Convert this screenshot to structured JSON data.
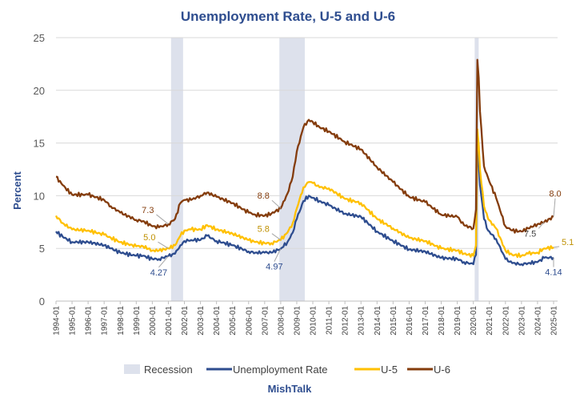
{
  "chart_data": {
    "type": "line",
    "title": "Unemployment Rate, U-5 and U-6",
    "ylabel": "Percent",
    "xlabel": "",
    "ylim": [
      0,
      25
    ],
    "yticks": [
      "0",
      "5",
      "10",
      "15",
      "20",
      "25"
    ],
    "x_tick_labels": [
      "1994-01",
      "1995-01",
      "1996-01",
      "1997-01",
      "1998-01",
      "1999-01",
      "2000-01",
      "2001-01",
      "2002-01",
      "2003-01",
      "2004-01",
      "2005-01",
      "2006-01",
      "2007-01",
      "2008-01",
      "2009-01",
      "2010-01",
      "2011-01",
      "2012-01",
      "2013-01",
      "2014-01",
      "2015-01",
      "2016-01",
      "2017-01",
      "2018-01",
      "2019-01",
      "2020-01",
      "2021-01",
      "2022-01",
      "2023-01",
      "2024-01",
      "2025-01"
    ],
    "grid": "horizontal",
    "legend_position": "bottom",
    "recessions": [
      {
        "start": "2001-03",
        "end": "2001-11"
      },
      {
        "start": "2007-12",
        "end": "2009-06"
      },
      {
        "start": "2020-02",
        "end": "2020-04"
      }
    ],
    "series": [
      {
        "name": "Unemployment Rate",
        "color": "#2e4d8f",
        "x": [
          "1994-01",
          "1994-06",
          "1995-01",
          "1996-01",
          "1997-01",
          "1997-06",
          "1998-01",
          "1999-01",
          "1999-06",
          "2000-01",
          "2000-06",
          "2001-01",
          "2001-06",
          "2001-10",
          "2002-01",
          "2002-06",
          "2003-01",
          "2003-06",
          "2004-01",
          "2005-01",
          "2006-01",
          "2006-06",
          "2007-01",
          "2007-06",
          "2008-01",
          "2008-06",
          "2008-10",
          "2009-01",
          "2009-06",
          "2009-10",
          "2010-01",
          "2010-06",
          "2011-01",
          "2012-01",
          "2013-01",
          "2014-01",
          "2015-01",
          "2016-01",
          "2017-01",
          "2018-01",
          "2019-01",
          "2019-06",
          "2020-01",
          "2020-03",
          "2020-04",
          "2020-05",
          "2020-06",
          "2020-09",
          "2020-12",
          "2021-06",
          "2022-01",
          "2022-06",
          "2023-01",
          "2023-06",
          "2024-01",
          "2024-06",
          "2025-01"
        ],
        "y": [
          6.6,
          6.1,
          5.6,
          5.6,
          5.3,
          5.0,
          4.6,
          4.3,
          4.3,
          4.0,
          4.0,
          4.27,
          4.5,
          5.3,
          5.7,
          5.8,
          5.8,
          6.2,
          5.7,
          5.3,
          4.7,
          4.6,
          4.6,
          4.6,
          4.97,
          5.6,
          6.5,
          7.8,
          9.5,
          10.0,
          9.8,
          9.5,
          9.1,
          8.3,
          8.0,
          6.6,
          5.7,
          4.9,
          4.7,
          4.1,
          4.0,
          3.7,
          3.5,
          4.4,
          14.7,
          13.2,
          11.0,
          7.8,
          6.7,
          5.9,
          4.0,
          3.6,
          3.5,
          3.6,
          3.7,
          4.1,
          4.14
        ]
      },
      {
        "name": "U-5",
        "color": "#ffc000",
        "x": [
          "1994-01",
          "1994-06",
          "1995-01",
          "1996-01",
          "1997-01",
          "1997-06",
          "1998-01",
          "1999-01",
          "1999-06",
          "2000-01",
          "2000-06",
          "2001-01",
          "2001-06",
          "2001-10",
          "2002-01",
          "2002-06",
          "2003-01",
          "2003-06",
          "2004-01",
          "2005-01",
          "2006-01",
          "2006-06",
          "2007-01",
          "2007-06",
          "2008-01",
          "2008-06",
          "2008-10",
          "2009-01",
          "2009-06",
          "2009-10",
          "2010-01",
          "2010-06",
          "2011-01",
          "2012-01",
          "2013-01",
          "2014-01",
          "2015-01",
          "2016-01",
          "2017-01",
          "2018-01",
          "2019-01",
          "2019-06",
          "2020-01",
          "2020-03",
          "2020-04",
          "2020-05",
          "2020-06",
          "2020-09",
          "2020-12",
          "2021-06",
          "2022-01",
          "2022-06",
          "2023-01",
          "2023-06",
          "2024-01",
          "2024-06",
          "2025-01"
        ],
        "y": [
          8.1,
          7.4,
          6.8,
          6.7,
          6.3,
          6.0,
          5.6,
          5.2,
          5.2,
          4.8,
          4.8,
          5.0,
          5.3,
          6.2,
          6.7,
          6.8,
          6.8,
          7.2,
          6.8,
          6.4,
          5.8,
          5.6,
          5.5,
          5.5,
          5.8,
          6.5,
          7.4,
          8.8,
          10.8,
          11.3,
          11.2,
          10.8,
          10.7,
          9.7,
          9.3,
          7.8,
          6.9,
          6.0,
          5.7,
          5.0,
          4.8,
          4.5,
          4.3,
          5.3,
          16.3,
          14.8,
          12.5,
          9.0,
          7.8,
          6.9,
          4.8,
          4.4,
          4.3,
          4.5,
          4.6,
          5.0,
          5.1
        ]
      },
      {
        "name": "U-6",
        "color": "#843c0c",
        "x": [
          "1994-01",
          "1994-06",
          "1995-01",
          "1996-01",
          "1997-01",
          "1997-06",
          "1998-01",
          "1999-01",
          "1999-06",
          "2000-01",
          "2000-06",
          "2001-01",
          "2001-06",
          "2001-10",
          "2002-01",
          "2002-06",
          "2003-01",
          "2003-06",
          "2004-01",
          "2005-01",
          "2006-01",
          "2006-06",
          "2007-01",
          "2007-06",
          "2008-01",
          "2008-06",
          "2008-10",
          "2009-01",
          "2009-06",
          "2009-10",
          "2010-01",
          "2010-06",
          "2011-01",
          "2012-01",
          "2013-01",
          "2014-01",
          "2015-01",
          "2016-01",
          "2017-01",
          "2018-01",
          "2019-01",
          "2019-06",
          "2020-01",
          "2020-03",
          "2020-04",
          "2020-05",
          "2020-06",
          "2020-09",
          "2020-12",
          "2021-06",
          "2022-01",
          "2022-06",
          "2023-01",
          "2023-06",
          "2024-01",
          "2024-06",
          "2025-01"
        ],
        "y": [
          11.8,
          11.0,
          10.1,
          10.1,
          9.6,
          9.0,
          8.4,
          7.7,
          7.6,
          7.1,
          7.0,
          7.3,
          7.8,
          9.3,
          9.6,
          9.6,
          10.0,
          10.3,
          9.9,
          9.3,
          8.4,
          8.2,
          8.1,
          8.3,
          8.8,
          10.2,
          11.8,
          14.2,
          16.5,
          17.2,
          17.0,
          16.5,
          16.1,
          15.1,
          14.4,
          12.7,
          11.3,
          9.9,
          9.4,
          8.2,
          8.0,
          7.2,
          6.9,
          8.7,
          22.9,
          21.2,
          18.0,
          12.8,
          11.7,
          9.8,
          7.1,
          6.7,
          6.6,
          6.9,
          7.3,
          7.5,
          8.0
        ]
      }
    ],
    "annotations": [
      {
        "text": "7.3",
        "series": "U-6",
        "x": "2001-01",
        "y": 7.3,
        "color": "#843c0c"
      },
      {
        "text": "5.0",
        "series": "U-5",
        "x": "2001-01",
        "y": 5.0,
        "color": "#bf9000"
      },
      {
        "text": "4.27",
        "series": "Unemployment Rate",
        "x": "2001-01",
        "y": 4.27,
        "color": "#2e4d8f"
      },
      {
        "text": "8.8",
        "series": "U-6",
        "x": "2008-01",
        "y": 8.8,
        "color": "#843c0c"
      },
      {
        "text": "5.8",
        "series": "U-5",
        "x": "2008-01",
        "y": 5.8,
        "color": "#bf9000"
      },
      {
        "text": "4.97",
        "series": "Unemployment Rate",
        "x": "2008-01",
        "y": 4.97,
        "color": "#2e4d8f"
      },
      {
        "text": "8.0",
        "series": "U-6",
        "x": "2025-01",
        "y": 8.0,
        "color": "#843c0c"
      },
      {
        "text": "7.5",
        "series": "U-6",
        "x": "2024-06",
        "y": 7.5,
        "color": "#404040"
      },
      {
        "text": "5.1",
        "series": "U-5",
        "x": "2025-01",
        "y": 5.1,
        "color": "#bf9000"
      },
      {
        "text": "4.14",
        "series": "Unemployment Rate",
        "x": "2025-01",
        "y": 4.14,
        "color": "#2e4d8f"
      }
    ],
    "legend": [
      "Recession",
      "Unemployment Rate",
      "U-5",
      "U-6"
    ]
  },
  "credit": "MishTalk",
  "colors": {
    "recession": "#dde1ec",
    "grid": "#d9d9d9",
    "title": "#2e4d8f"
  }
}
